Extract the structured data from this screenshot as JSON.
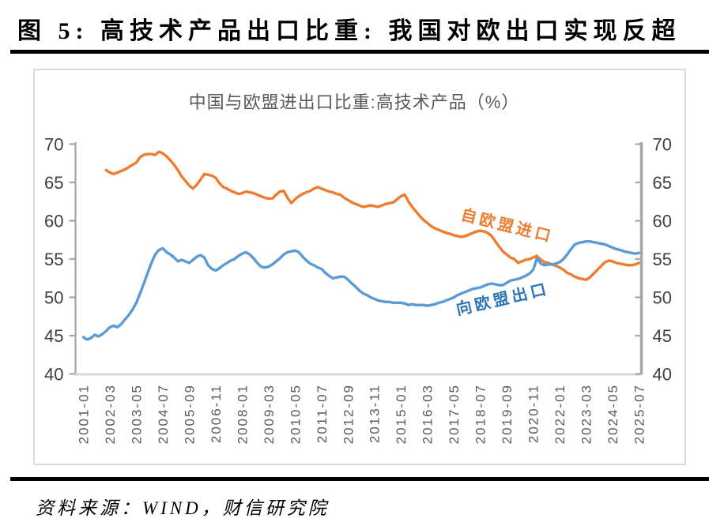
{
  "header": {
    "title": "图 5: 高技术产品出口比重: 我国对欧出口实现反超"
  },
  "footer": {
    "source": "资料来源：WIND，财信研究院"
  },
  "chart_data": {
    "type": "line",
    "title": "中国与欧盟进出口比重:高技术产品（%）",
    "xlabel": "",
    "ylabel": "",
    "ylim": [
      40,
      70
    ],
    "y_ticks": [
      40,
      45,
      50,
      55,
      60,
      65,
      70
    ],
    "dual_y_axis": true,
    "grid": false,
    "legend": "inline-annotations",
    "x_tick_labels": [
      "2001-01",
      "2002-03",
      "2003-05",
      "2004-07",
      "2005-09",
      "2006-11",
      "2008-01",
      "2009-03",
      "2010-05",
      "2011-07",
      "2012-09",
      "2013-11",
      "2015-01",
      "2016-03",
      "2017-05",
      "2018-07",
      "2019-09",
      "2020-11",
      "2022-01",
      "2023-03",
      "2024-05",
      "2025-07"
    ],
    "x_tick_step_months": 14,
    "x_start_month": "2001-01",
    "x_end_month": "2025-07",
    "annotations": [
      {
        "text": "自欧盟进口",
        "color": "#ED7D31"
      },
      {
        "text": "向欧盟出口",
        "color": "#2E75B6"
      }
    ],
    "series": [
      {
        "name": "自欧盟进口",
        "color": "#ED7D31",
        "start_month": "2002-01",
        "step_months": 2,
        "values": [
          66.6,
          66.3,
          66.1,
          66.3,
          66.5,
          66.7,
          67.0,
          67.3,
          67.6,
          68.3,
          68.6,
          68.7,
          68.7,
          68.6,
          69.0,
          68.8,
          68.4,
          67.9,
          67.3,
          66.6,
          65.8,
          65.2,
          64.6,
          64.2,
          64.7,
          65.4,
          66.1,
          66.0,
          65.9,
          65.6,
          64.9,
          64.4,
          64.2,
          63.9,
          63.7,
          63.5,
          63.6,
          63.8,
          63.7,
          63.6,
          63.4,
          63.2,
          63.0,
          62.9,
          62.9,
          63.4,
          63.8,
          63.9,
          63.0,
          62.3,
          62.8,
          63.2,
          63.5,
          63.7,
          63.9,
          64.2,
          64.4,
          64.2,
          64.0,
          63.8,
          63.7,
          63.5,
          63.4,
          63.0,
          62.7,
          62.4,
          62.2,
          62.0,
          61.8,
          61.9,
          62.0,
          61.9,
          61.8,
          62.0,
          62.2,
          62.3,
          62.4,
          62.8,
          63.2,
          63.4,
          62.5,
          61.8,
          61.2,
          60.6,
          60.1,
          59.7,
          59.3,
          59.0,
          58.8,
          58.6,
          58.4,
          58.3,
          58.1,
          58.0,
          57.9,
          58.0,
          58.2,
          58.4,
          58.6,
          58.7,
          58.6,
          58.4,
          58.0,
          57.3,
          56.6,
          56.0,
          55.6,
          55.2,
          55.0,
          54.5,
          54.7,
          54.9,
          55.0,
          55.2,
          55.4,
          54.9,
          54.6,
          54.5,
          54.3,
          54.1,
          53.9,
          53.6,
          53.2,
          53.0,
          52.7,
          52.5,
          52.4,
          52.3,
          52.6,
          53.1,
          53.6,
          54.1,
          54.6,
          54.8,
          54.7,
          54.5,
          54.4,
          54.3,
          54.2,
          54.2,
          54.3,
          54.5
        ]
      },
      {
        "name": "向欧盟出口",
        "color": "#5B9BD5",
        "start_month": "2001-01",
        "step_months": 2,
        "values": [
          44.8,
          44.5,
          44.7,
          45.1,
          44.9,
          45.2,
          45.6,
          46.1,
          46.3,
          46.1,
          46.5,
          47.1,
          47.7,
          48.4,
          49.3,
          50.5,
          51.8,
          53.2,
          54.5,
          55.6,
          56.2,
          56.4,
          55.9,
          55.6,
          55.2,
          54.7,
          54.9,
          54.7,
          54.5,
          54.9,
          55.3,
          55.5,
          55.2,
          54.2,
          53.7,
          53.5,
          53.8,
          54.2,
          54.5,
          54.8,
          55.0,
          55.4,
          55.7,
          55.9,
          55.6,
          55.1,
          54.5,
          54.0,
          53.9,
          54.0,
          54.3,
          54.7,
          55.1,
          55.6,
          55.9,
          56.0,
          56.1,
          55.9,
          55.3,
          54.8,
          54.4,
          54.2,
          53.9,
          53.7,
          53.2,
          52.8,
          52.5,
          52.6,
          52.7,
          52.7,
          52.3,
          51.8,
          51.4,
          50.9,
          50.5,
          50.3,
          50.0,
          49.8,
          49.6,
          49.5,
          49.4,
          49.4,
          49.3,
          49.3,
          49.3,
          49.2,
          49.0,
          49.1,
          49.0,
          49.0,
          49.0,
          48.9,
          49.0,
          49.1,
          49.3,
          49.4,
          49.6,
          49.8,
          50.0,
          50.3,
          50.5,
          50.7,
          50.9,
          51.1,
          51.2,
          51.3,
          51.5,
          51.7,
          51.8,
          51.7,
          51.6,
          51.6,
          51.9,
          52.2,
          52.3,
          52.4,
          52.6,
          52.8,
          53.1,
          53.6,
          55.1,
          54.4,
          54.2,
          54.3,
          54.3,
          54.4,
          54.6,
          55.0,
          55.6,
          56.3,
          56.9,
          57.1,
          57.2,
          57.3,
          57.3,
          57.2,
          57.1,
          57.0,
          56.9,
          56.7,
          56.5,
          56.3,
          56.2,
          56.0,
          55.9,
          55.8,
          55.7,
          55.8
        ]
      }
    ]
  }
}
